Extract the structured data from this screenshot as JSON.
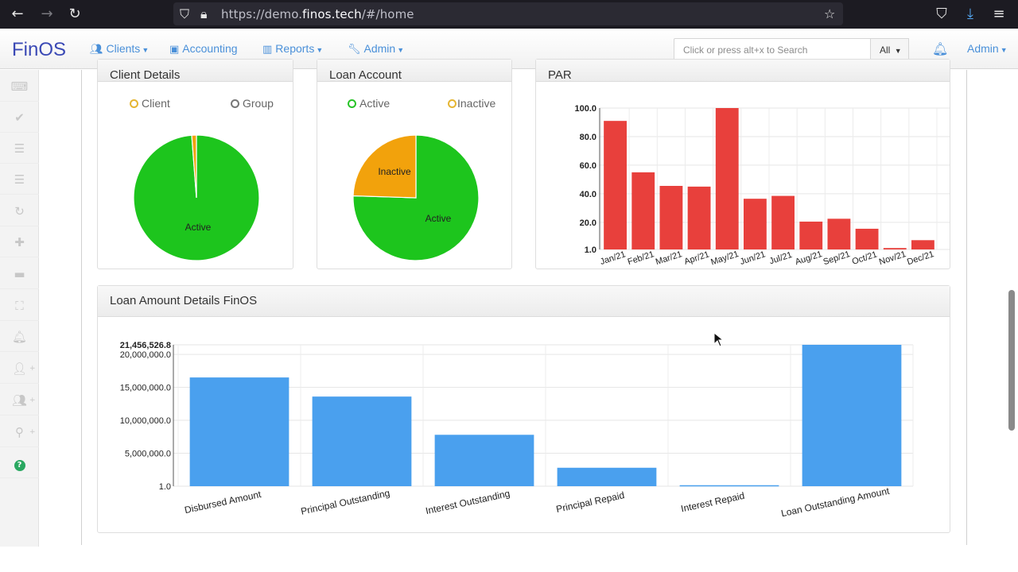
{
  "browser": {
    "url_prefix": "https://demo.",
    "url_domain": "finos.tech",
    "url_suffix": "/#/home"
  },
  "navbar": {
    "brand": "FinOS",
    "items": [
      {
        "label": "Clients",
        "icon": "users-icon",
        "dropdown": true
      },
      {
        "label": "Accounting",
        "icon": "money-icon",
        "dropdown": false
      },
      {
        "label": "Reports",
        "icon": "bar-chart-icon",
        "dropdown": true
      },
      {
        "label": "Admin",
        "icon": "wrench-icon",
        "dropdown": true
      }
    ],
    "search_placeholder": "Click or press alt+x to Search",
    "search_scope": "All",
    "user_menu": "Admin"
  },
  "panels": {
    "client_details": {
      "title": "Client Details",
      "legend": [
        "Client",
        "Group"
      ],
      "slice_label": "Active"
    },
    "loan_account": {
      "title": "Loan Account",
      "legend": [
        "Active",
        "Inactive"
      ],
      "slice_labels": [
        "Inactive",
        "Active"
      ]
    },
    "par": {
      "title": "PAR"
    },
    "loan_amount": {
      "title": "Loan Amount Details FinOS"
    }
  },
  "colors": {
    "pie_green": "#1dc51d",
    "pie_orange": "#f2a20c",
    "par_red": "#e8403c",
    "loan_blue": "#4aa0ee",
    "legend_client": "#e5b532",
    "legend_group": "#777777",
    "legend_active": "#27c327",
    "legend_inactive": "#e5b532"
  },
  "chart_data": [
    {
      "type": "pie",
      "panel": "Client Details",
      "categories": [
        "Client",
        "Group"
      ],
      "values": [
        98.8,
        1.2
      ]
    },
    {
      "type": "pie",
      "panel": "Loan Account",
      "categories": [
        "Active",
        "Inactive"
      ],
      "values": [
        75.5,
        24.5
      ]
    },
    {
      "type": "bar",
      "panel": "PAR",
      "categories": [
        "Jan/21",
        "Feb/21",
        "Mar/21",
        "Apr/21",
        "May/21",
        "Jun/21",
        "Jul/21",
        "Aug/21",
        "Sep/21",
        "Oct/21",
        "Nov/21",
        "Dec/21"
      ],
      "values": [
        91,
        55,
        45.5,
        45,
        100,
        36.5,
        38.5,
        20.5,
        22.5,
        15.5,
        2,
        7.5
      ],
      "ylim": [
        1.0,
        100.0
      ],
      "yticks": [
        "1.0",
        "20.0",
        "40.0",
        "60.0",
        "80.0",
        "100.0"
      ],
      "ytick_values": [
        1,
        20,
        40,
        60,
        80,
        100
      ],
      "grid": true
    },
    {
      "type": "bar",
      "panel": "Loan Amount Details FinOS",
      "categories": [
        "Disbursed Amount",
        "Principal Outstanding",
        "Interest Outstanding",
        "Principal Repaid",
        "Interest Repaid",
        "Loan Outstanding Amount"
      ],
      "values": [
        16500000,
        13600000,
        7800000,
        2800000,
        150000,
        21456526.8
      ],
      "ylim": [
        1.0,
        21456526.8
      ],
      "yticks": [
        "1.0",
        "5,000,000.0",
        "10,000,000.0",
        "15,000,000.0",
        "20,000,000.0",
        "21,456,526.8"
      ],
      "ytick_values": [
        1,
        5000000,
        10000000,
        15000000,
        20000000,
        21456526.8
      ],
      "grid": true
    }
  ]
}
